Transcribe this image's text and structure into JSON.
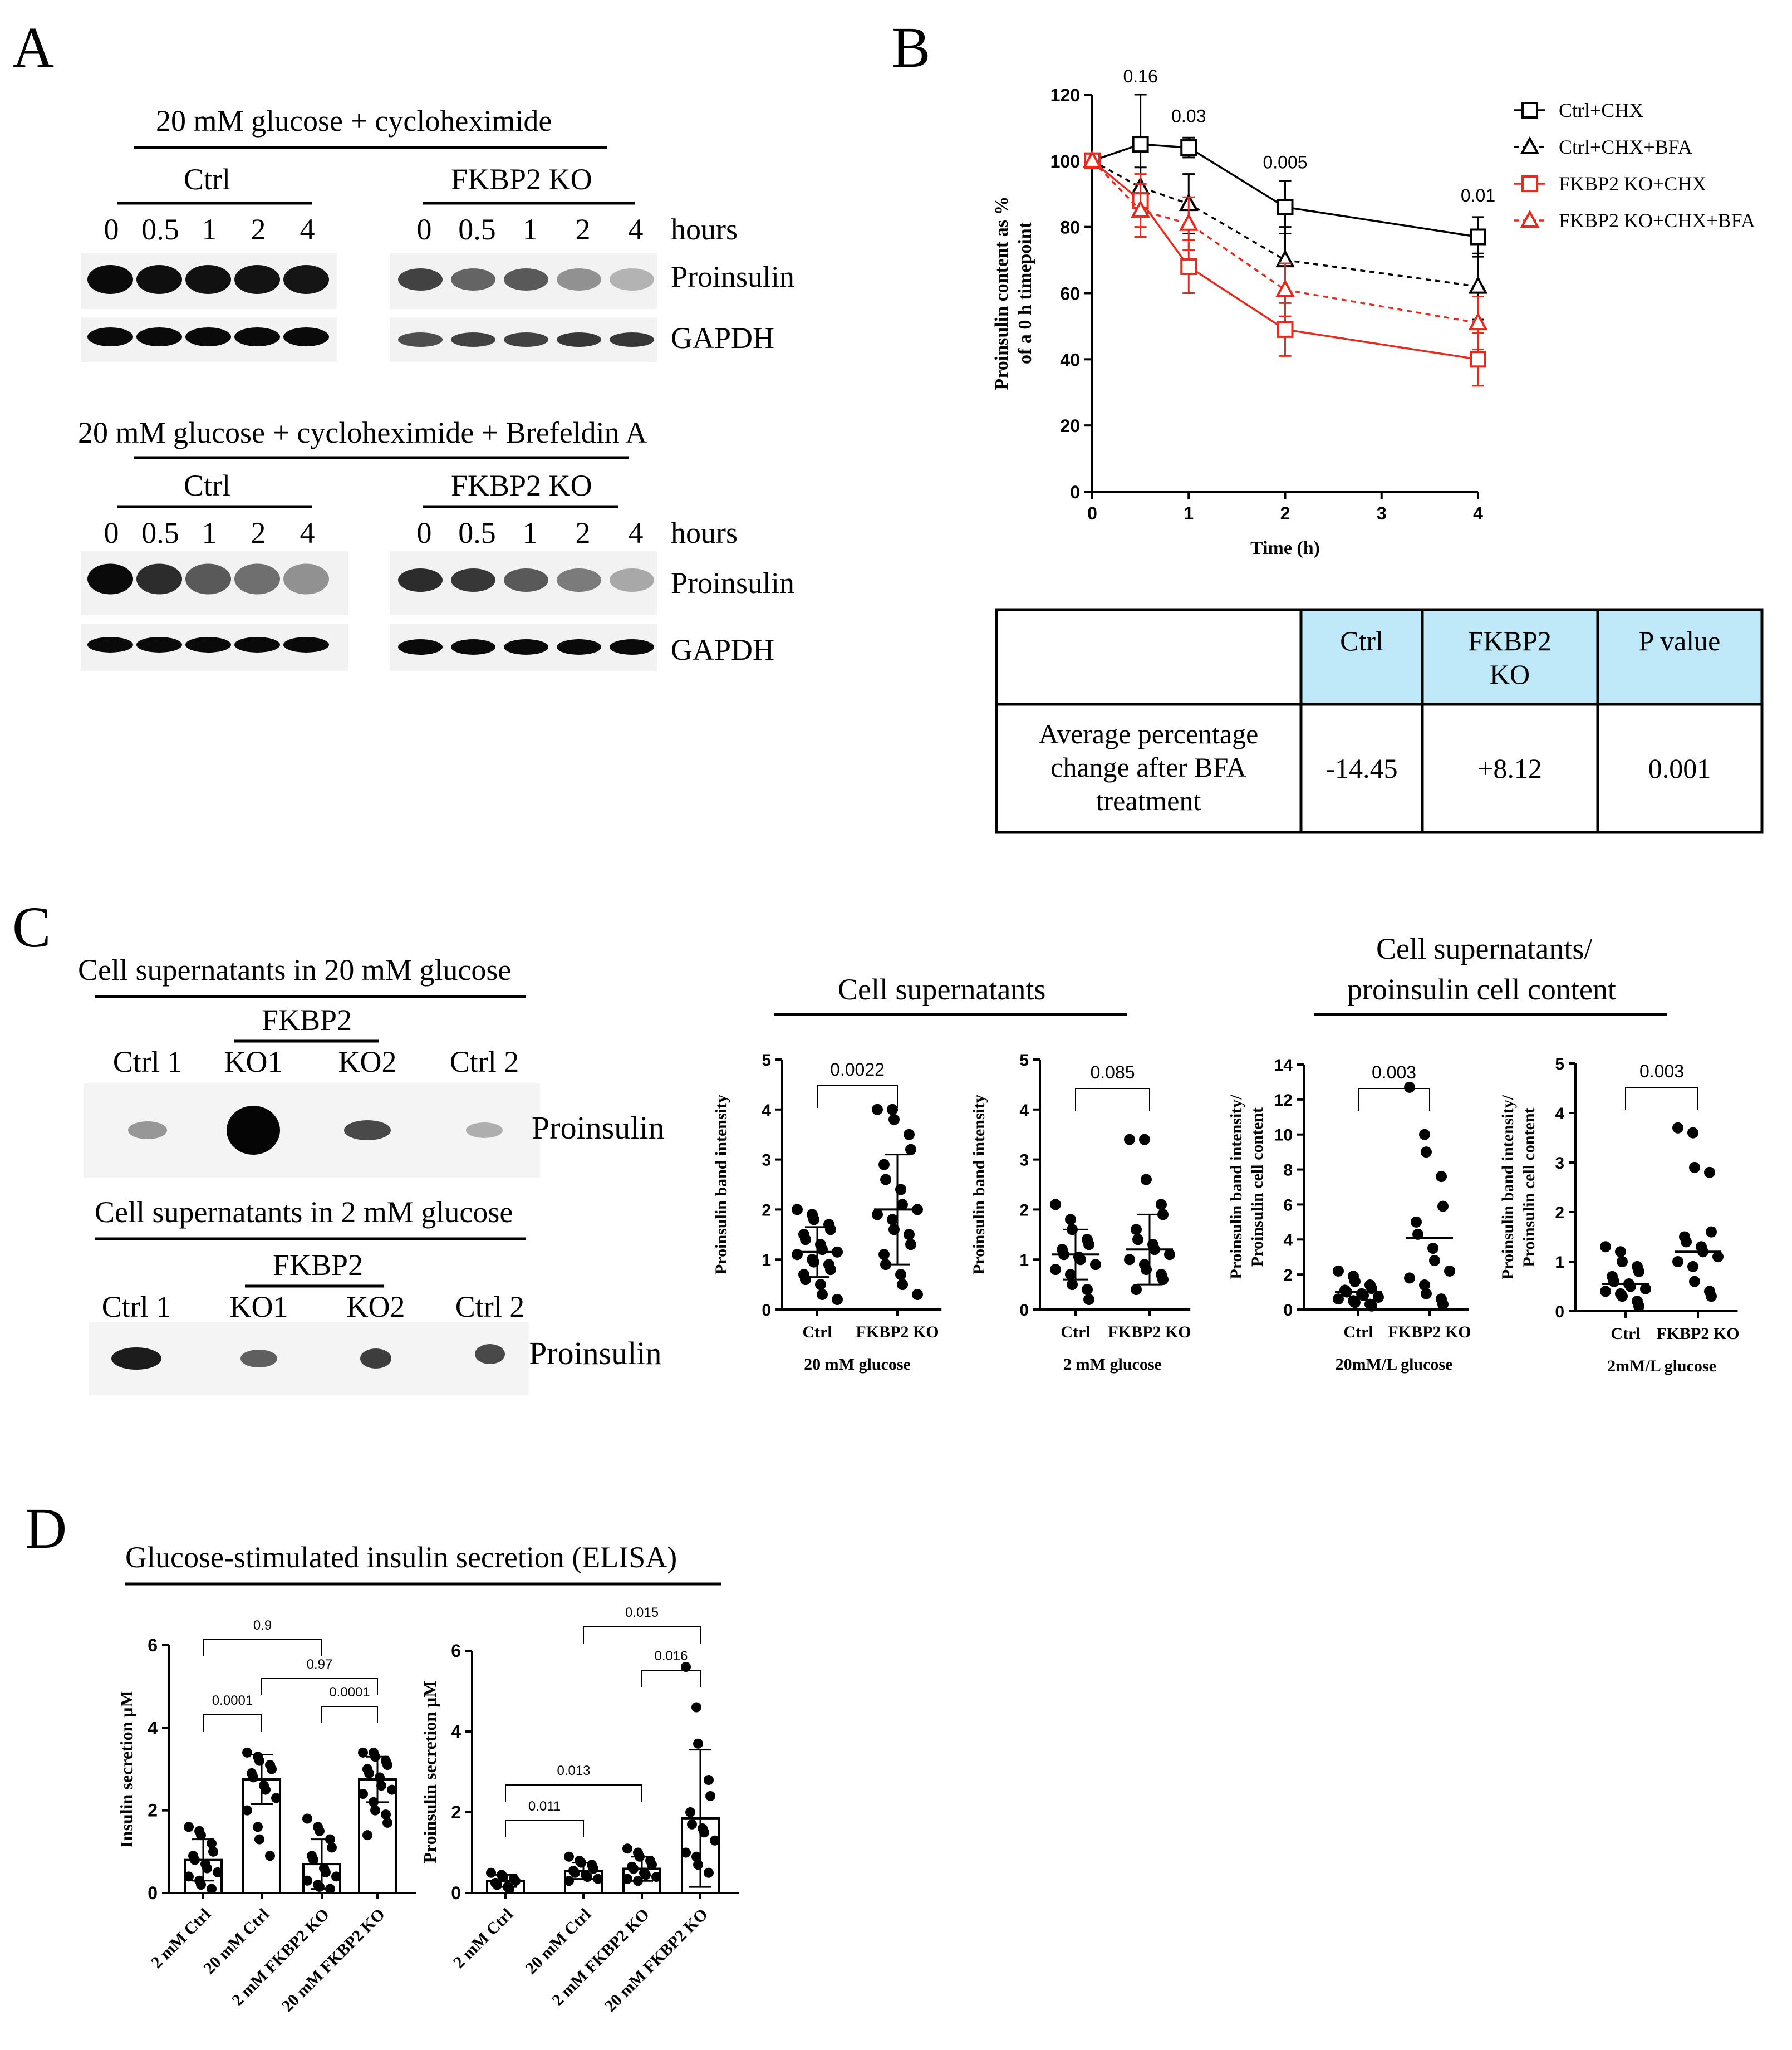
{
  "panel_letters": {
    "A": "A",
    "B": "B",
    "C": "C",
    "D": "D"
  },
  "panelA": {
    "blot1": {
      "title": "20 mM glucose + cycloheximide",
      "group_ctrl": "Ctrl",
      "group_ko": "FKBP2 KO",
      "lanes": [
        "0",
        "0.5",
        "1",
        "2",
        "4"
      ],
      "hours_label": "hours",
      "row_labels": [
        "Proinsulin",
        "GAPDH"
      ],
      "band_intensity": {
        "ctrl_proinsulin": [
          1.0,
          0.98,
          0.97,
          0.96,
          0.95
        ],
        "ko_proinsulin": [
          0.75,
          0.6,
          0.65,
          0.4,
          0.25
        ],
        "ctrl_gapdh": [
          1,
          1,
          1,
          1,
          1
        ],
        "ko_gapdh": [
          0.7,
          0.75,
          0.75,
          0.8,
          0.8
        ]
      }
    },
    "blot2": {
      "title": "20 mM glucose + cycloheximide + Brefeldin A",
      "group_ctrl": "Ctrl",
      "group_ko": "FKBP2 KO",
      "lanes": [
        "0",
        "0.5",
        "1",
        "2",
        "4"
      ],
      "hours_label": "hours",
      "row_labels": [
        "Proinsulin",
        "GAPDH"
      ],
      "band_intensity": {
        "ctrl_proinsulin": [
          1.0,
          0.85,
          0.65,
          0.55,
          0.4
        ],
        "ko_proinsulin": [
          0.85,
          0.8,
          0.65,
          0.5,
          0.3
        ],
        "ctrl_gapdh": [
          1,
          1,
          1,
          1,
          1
        ],
        "ko_gapdh": [
          1,
          1,
          1,
          1,
          1
        ]
      }
    }
  },
  "panelB": {
    "table": {
      "headers": [
        "Ctrl",
        "FKBP2\nKO",
        "P value"
      ],
      "row_label": "Average percentage\nchange after BFA\ntreatment",
      "values": [
        "-14.45",
        "+8.12",
        "0.001"
      ],
      "header_color": "#bfe9f9"
    }
  },
  "panelC": {
    "blot1": {
      "title": "Cell supernatants in 20 mM glucose",
      "fkbp2": "FKBP2",
      "lanes": [
        "Ctrl 1",
        "KO1",
        "KO2",
        "Ctrl 2"
      ],
      "label": "Proinsulin",
      "band_intensity": [
        0.35,
        1.0,
        0.7,
        0.25
      ]
    },
    "blot2": {
      "title": "Cell supernatants in 2 mM glucose",
      "fkbp2": "FKBP2",
      "lanes": [
        "Ctrl 1",
        "KO1",
        "KO2",
        "Ctrl 2"
      ],
      "label": "Proinsulin",
      "band_intensity": [
        0.9,
        0.6,
        0.75,
        0.7
      ]
    },
    "group1_title": "Cell supernatants",
    "group2_title_line1": "Cell supernatants/",
    "group2_title_line2": "proinsulin cell content"
  },
  "panelD": {
    "title": "Glucose-stimulated insulin secretion (ELISA)"
  },
  "chart_data": [
    {
      "id": "B-line",
      "type": "line",
      "xlabel": "Time (h)",
      "ylabel": "Proinsulin content as %\nof a 0 h timepoint",
      "xlim": [
        0,
        4
      ],
      "ylim": [
        0,
        120
      ],
      "xticks": [
        0,
        1,
        2,
        3,
        4
      ],
      "yticks": [
        0,
        20,
        40,
        60,
        80,
        100,
        120
      ],
      "x": [
        0,
        0.5,
        1,
        2,
        4
      ],
      "series": [
        {
          "name": "Ctrl+CHX",
          "color": "#000000",
          "dashed": false,
          "marker": "square",
          "values": [
            100,
            105,
            104,
            86,
            77
          ],
          "err": [
            0,
            15,
            3,
            8,
            6
          ]
        },
        {
          "name": "Ctrl+CHX+BFA",
          "color": "#000000",
          "dashed": true,
          "marker": "triangle",
          "values": [
            100,
            92,
            87,
            70,
            62
          ],
          "err": [
            0,
            6,
            9,
            10,
            10
          ]
        },
        {
          "name": "FKBP2 KO+CHX",
          "color": "#e8291c",
          "dashed": false,
          "marker": "square",
          "values": [
            100,
            88,
            68,
            49,
            40
          ],
          "err": [
            0,
            8,
            8,
            8,
            8
          ]
        },
        {
          "name": "FKBP2 KO+CHX+BFA",
          "color": "#e8291c",
          "dashed": true,
          "marker": "triangle",
          "values": [
            100,
            85,
            81,
            61,
            51
          ],
          "err": [
            0,
            8,
            8,
            8,
            8
          ]
        }
      ],
      "annotations": [
        {
          "x": 0.5,
          "y": 120,
          "text": "0.16"
        },
        {
          "x": 1,
          "y": 108,
          "text": "0.03"
        },
        {
          "x": 2,
          "y": 94,
          "text": "0.005"
        },
        {
          "x": 4,
          "y": 84,
          "text": "0.01"
        }
      ]
    },
    {
      "id": "C1",
      "type": "scatter",
      "ylabel": "Proinsulin band intensity",
      "xlabel": "20 mM glucose",
      "ylim": [
        0,
        5
      ],
      "yticks": [
        0,
        1,
        2,
        3,
        4,
        5
      ],
      "categories": [
        "Ctrl",
        "FKBP2 KO"
      ],
      "series": [
        {
          "name": "Ctrl",
          "values": [
            2.0,
            1.9,
            1.8,
            1.7,
            1.6,
            1.5,
            1.4,
            1.3,
            1.2,
            1.15,
            1.1,
            1.0,
            0.95,
            0.9,
            0.8,
            0.7,
            0.6,
            0.5,
            0.3,
            0.2
          ],
          "mean": 1.15,
          "sd": 0.5
        },
        {
          "name": "FKBP2 KO",
          "values": [
            4.0,
            4.0,
            3.8,
            3.5,
            3.2,
            2.9,
            2.6,
            2.4,
            2.1,
            2.0,
            1.9,
            1.8,
            1.6,
            1.5,
            1.3,
            1.1,
            0.9,
            0.7,
            0.5,
            0.3
          ],
          "mean": 2.0,
          "sd": 1.1
        }
      ],
      "annotations": [
        {
          "text": "0.0022"
        }
      ]
    },
    {
      "id": "C2",
      "type": "scatter",
      "ylabel": "Proinsulin band intensity",
      "xlabel": "2 mM glucose",
      "ylim": [
        0,
        5
      ],
      "yticks": [
        0,
        1,
        2,
        3,
        4,
        5
      ],
      "categories": [
        "Ctrl",
        "FKBP2 KO"
      ],
      "series": [
        {
          "name": "Ctrl",
          "values": [
            2.1,
            1.8,
            1.6,
            1.4,
            1.3,
            1.2,
            1.1,
            1.05,
            1.0,
            0.9,
            0.8,
            0.7,
            0.5,
            0.4,
            0.2
          ],
          "mean": 1.1,
          "sd": 0.5
        },
        {
          "name": "FKBP2 KO",
          "values": [
            3.4,
            3.4,
            2.6,
            2.1,
            1.9,
            1.6,
            1.4,
            1.3,
            1.2,
            1.1,
            1.0,
            0.9,
            0.8,
            0.7,
            0.6,
            0.4
          ],
          "mean": 1.2,
          "sd": 0.7
        }
      ],
      "annotations": [
        {
          "text": "0.085"
        }
      ]
    },
    {
      "id": "C3",
      "type": "scatter",
      "ylabel": "Proinsulin band intensity/\nProinsulin cell content",
      "xlabel": "20mM/L glucose",
      "ylim": [
        0,
        14
      ],
      "yticks": [
        0,
        2,
        4,
        6,
        8,
        10,
        12,
        14
      ],
      "categories": [
        "Ctrl",
        "FKBP2 KO"
      ],
      "series": [
        {
          "name": "Ctrl",
          "values": [
            2.2,
            1.9,
            1.6,
            1.4,
            1.2,
            1.1,
            1.0,
            0.9,
            0.8,
            0.7,
            0.6,
            0.5,
            0.4,
            0.3,
            0.2
          ],
          "mean": 1.0,
          "sd": 0
        },
        {
          "name": "FKBP2 KO",
          "values": [
            12.7,
            10.0,
            9.0,
            7.6,
            5.9,
            5.0,
            4.3,
            3.5,
            2.8,
            2.2,
            1.8,
            1.4,
            0.9,
            0.6,
            0.3
          ],
          "mean": 4.1,
          "sd": 0
        }
      ],
      "annotations": [
        {
          "text": "0.003"
        }
      ]
    },
    {
      "id": "C4",
      "type": "scatter",
      "ylabel": "Proinsulin band intensity/\nProinsulin cell content",
      "xlabel": "2mM/L glucose",
      "ylim": [
        0,
        5
      ],
      "yticks": [
        0,
        1,
        2,
        3,
        4,
        5
      ],
      "categories": [
        "Ctrl",
        "FKBP2 KO"
      ],
      "series": [
        {
          "name": "Ctrl",
          "values": [
            1.3,
            1.2,
            1.0,
            0.9,
            0.8,
            0.7,
            0.6,
            0.55,
            0.5,
            0.45,
            0.4,
            0.35,
            0.3,
            0.2,
            0.1
          ],
          "mean": 0.55,
          "sd": 0
        },
        {
          "name": "FKBP2 KO",
          "values": [
            3.7,
            3.6,
            2.9,
            2.8,
            1.6,
            1.5,
            1.4,
            1.3,
            1.2,
            1.1,
            1.0,
            0.9,
            0.6,
            0.4,
            0.3
          ],
          "mean": 1.2,
          "sd": 0
        }
      ],
      "annotations": [
        {
          "text": "0.003"
        }
      ]
    },
    {
      "id": "D1",
      "type": "bar",
      "ylabel": "Insulin secretion μM",
      "ylim": [
        0,
        6
      ],
      "yticks": [
        0,
        2,
        4,
        6
      ],
      "categories": [
        "2 mM Ctrl",
        "20 mM Ctrl",
        "2 mM FKBP2 KO",
        "20 mM FKBP2 KO"
      ],
      "values": [
        0.8,
        2.75,
        0.7,
        2.75
      ],
      "err": [
        0.5,
        0.6,
        0.6,
        0.55
      ],
      "points": [
        [
          1.6,
          1.5,
          1.4,
          1.2,
          1.0,
          0.9,
          0.8,
          0.7,
          0.6,
          0.5,
          0.4,
          0.3,
          0.2,
          0.1
        ],
        [
          3.4,
          3.3,
          3.2,
          3.1,
          3.0,
          2.9,
          2.8,
          2.6,
          2.5,
          2.3,
          2.0,
          1.6,
          1.3,
          0.9
        ],
        [
          1.8,
          1.6,
          1.5,
          1.3,
          1.1,
          0.9,
          0.8,
          0.6,
          0.5,
          0.4,
          0.3,
          0.2,
          0.15,
          0.1
        ],
        [
          3.4,
          3.4,
          3.3,
          3.2,
          3.1,
          3.0,
          2.9,
          2.8,
          2.6,
          2.5,
          2.4,
          2.2,
          2.0,
          1.9,
          1.7,
          1.4
        ]
      ],
      "annotations": [
        {
          "a": 0,
          "b": 1,
          "text": "0.0001"
        },
        {
          "a": 2,
          "b": 3,
          "text": "0.0001"
        },
        {
          "a": 1,
          "b": 3,
          "text": "0.97"
        },
        {
          "a": 0,
          "b": 2,
          "text": "0.9"
        }
      ]
    },
    {
      "id": "D2",
      "type": "bar",
      "ylabel": "Proinsulin secretion μM",
      "ylim": [
        0,
        6
      ],
      "yticks": [
        0,
        2,
        4,
        6
      ],
      "categories": [
        "2 mM Ctrl",
        "20 mM Ctrl",
        "2 mM FKBP2 KO",
        "20 mM FKBP2 KO"
      ],
      "values": [
        0.3,
        0.55,
        0.6,
        1.85
      ],
      "err": [
        0.15,
        0.2,
        0.3,
        1.7
      ],
      "points": [
        [
          0.5,
          0.45,
          0.4,
          0.35,
          0.3,
          0.25,
          0.2,
          0.15,
          0.1
        ],
        [
          0.9,
          0.8,
          0.75,
          0.7,
          0.6,
          0.55,
          0.5,
          0.45,
          0.4,
          0.35,
          0.3
        ],
        [
          1.1,
          1.0,
          0.9,
          0.8,
          0.7,
          0.65,
          0.6,
          0.5,
          0.45,
          0.4,
          0.35,
          0.3
        ],
        [
          5.6,
          4.6,
          3.7,
          2.8,
          2.4,
          2.0,
          1.7,
          1.6,
          1.5,
          1.3,
          1.0,
          0.9,
          0.7,
          0.5
        ]
      ],
      "annotations": [
        {
          "a": 0,
          "b": 1,
          "text": "0.011"
        },
        {
          "a": 0,
          "b": 2,
          "text": "0.013"
        },
        {
          "a": 2,
          "b": 3,
          "text": "0.016"
        },
        {
          "a": 1,
          "b": 3,
          "text": "0.015"
        }
      ]
    }
  ]
}
